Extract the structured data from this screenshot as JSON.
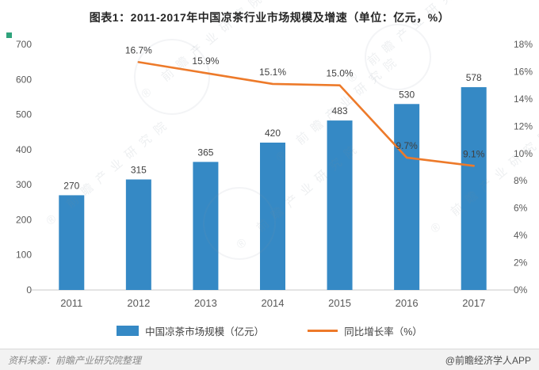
{
  "title": "图表1：2011-2017年中国凉茶行业市场规模及增速（单位：亿元，%）",
  "chart_data": {
    "type": "bar+line",
    "title": "图表1：2011-2017年中国凉茶行业市场规模及增速（单位：亿元，%）",
    "categories": [
      "2011",
      "2012",
      "2013",
      "2014",
      "2015",
      "2016",
      "2017"
    ],
    "series": [
      {
        "name": "中国凉茶市场规模（亿元）",
        "type": "bar",
        "axis": "left",
        "values": [
          270,
          315,
          365,
          420,
          483,
          530,
          578
        ],
        "labels": [
          "270",
          "315",
          "365",
          "420",
          "483",
          "530",
          "578"
        ],
        "color": "#3589c5"
      },
      {
        "name": "同比增长率（%）",
        "type": "line",
        "axis": "right",
        "values": [
          null,
          16.7,
          15.9,
          15.1,
          15.0,
          9.7,
          9.1
        ],
        "labels": [
          "",
          "16.7%",
          "15.9%",
          "15.1%",
          "15.0%",
          "9.7%",
          "9.1%"
        ],
        "color": "#ed7a2a"
      }
    ],
    "left_axis": {
      "min": 0,
      "max": 700,
      "step": 100,
      "suffix": ""
    },
    "right_axis": {
      "min": 0,
      "max": 18,
      "step": 2,
      "suffix": "%"
    },
    "grid": false,
    "legend_position": "bottom"
  },
  "footer": {
    "source": "资料来源：前瞻产业研究院整理",
    "credit": "@前瞻经济学人APP"
  },
  "watermark": {
    "text": "前瞻产业研究院",
    "registered": "®"
  }
}
